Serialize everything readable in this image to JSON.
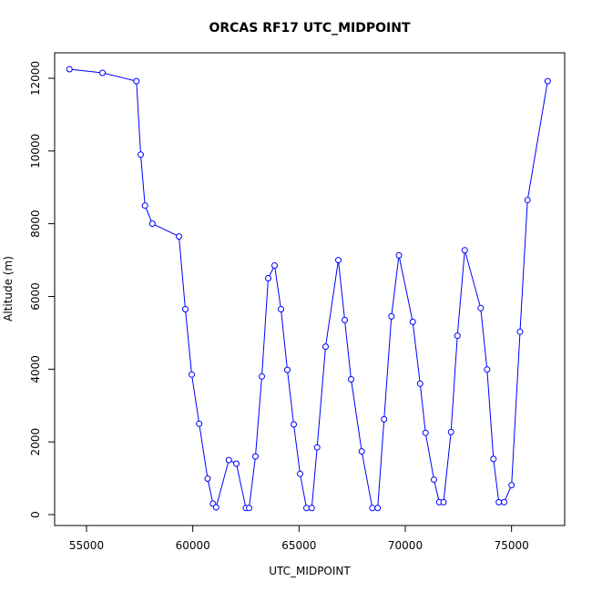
{
  "chart_data": {
    "type": "line",
    "title": "ORCAS RF17 UTC_MIDPOINT",
    "xlabel": "UTC_MIDPOINT",
    "ylabel": "Altitude (m)",
    "xlim": [
      53500,
      77500
    ],
    "ylim": [
      -300,
      12700
    ],
    "x_ticks": [
      55000,
      60000,
      65000,
      70000,
      75000
    ],
    "y_ticks": [
      0,
      2000,
      4000,
      6000,
      8000,
      10000,
      12000
    ],
    "grid": false,
    "marker": "open-circle",
    "color": "#0000ff",
    "series": [
      {
        "x": [
          54200,
          55750,
          57350,
          57550,
          57750,
          58100,
          59350,
          59650,
          59950,
          60300,
          60700,
          60950,
          61100,
          61700,
          62050,
          62500,
          62650,
          62950,
          63250,
          63550,
          63850,
          64150,
          64450,
          64750,
          65050,
          65350,
          65600,
          65850,
          66250,
          66850,
          67150,
          67450,
          67950,
          68450,
          68700,
          69000,
          69350,
          69700,
          70350,
          70700,
          70950,
          71350,
          71600,
          71800,
          72150,
          72450,
          72800,
          73550,
          73850,
          74150,
          74400,
          74650,
          75000,
          75400,
          75750,
          76700
        ],
        "y": [
          12250,
          12150,
          11920,
          9900,
          8500,
          8000,
          7650,
          5650,
          3850,
          2500,
          990,
          300,
          200,
          1500,
          1400,
          180,
          180,
          1600,
          3800,
          6500,
          6850,
          5650,
          3980,
          2480,
          1120,
          180,
          180,
          1850,
          4620,
          7000,
          5350,
          3720,
          1740,
          180,
          180,
          2620,
          5450,
          7130,
          5300,
          3600,
          2250,
          960,
          340,
          340,
          2270,
          4920,
          7270,
          5680,
          3990,
          1530,
          340,
          340,
          810,
          5030,
          8650,
          11920
        ]
      }
    ]
  }
}
